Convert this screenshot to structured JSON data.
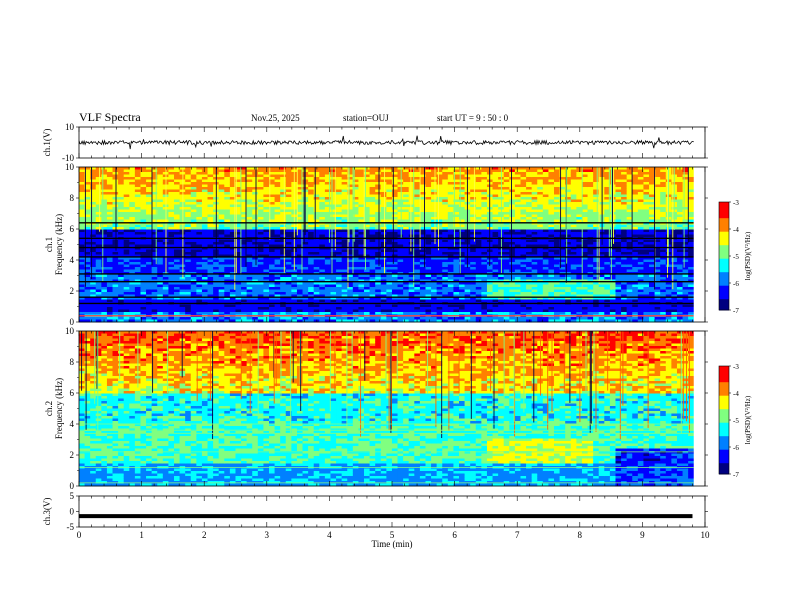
{
  "header": {
    "title": "VLF Spectra",
    "date": "Nov.25, 2025",
    "station": "station=OUJ",
    "start": "start  UT =   9 : 50 : 0"
  },
  "colormap": [
    "#000080",
    "#0000ff",
    "#0080ff",
    "#00ffff",
    "#80ff80",
    "#ffff00",
    "#ff8000",
    "#ff0000",
    "#800000"
  ],
  "chart_data": [
    {
      "type": "line",
      "ylabel": "ch.1(V)",
      "ylim": [
        -10,
        10
      ],
      "yticks": [
        10,
        -10
      ],
      "xlim": [
        0,
        10
      ],
      "baseline": 0,
      "description_series": [
        {
          "x": [
            0,
            9.8
          ],
          "y": [
            0,
            0
          ]
        }
      ]
    },
    {
      "type": "heatmap",
      "ylabel_ch": "ch.1",
      "ylabel": "Frequency (kHz)",
      "ylim": [
        0,
        10
      ],
      "yticks": [
        0,
        2,
        4,
        6,
        8,
        10
      ],
      "xlim": [
        0,
        10
      ],
      "colorbar": {
        "label": "log(PSD)(V²/Hz)",
        "ticks": [
          -3,
          -4,
          -5,
          -6,
          -7
        ],
        "range": [
          -7,
          -3
        ]
      }
    },
    {
      "type": "heatmap",
      "ylabel_ch": "ch.2",
      "ylabel": "Frequency (kHz)",
      "ylim": [
        0,
        10
      ],
      "yticks": [
        0,
        2,
        4,
        6,
        8,
        10
      ],
      "xlim": [
        0,
        10
      ],
      "colorbar": {
        "label": "log(PSD)(V²/Hz)",
        "ticks": [
          -3,
          -4,
          -5,
          -6,
          -7
        ],
        "range": [
          -7,
          -3
        ]
      }
    },
    {
      "type": "line",
      "ylabel": "ch.3(V)",
      "ylim": [
        -5,
        5
      ],
      "yticks": [
        5,
        0,
        -5
      ],
      "xlim": [
        0,
        10
      ],
      "series": [
        {
          "x": [
            0,
            9.8
          ],
          "y": [
            -1.5,
            -1.5
          ]
        }
      ]
    }
  ],
  "xaxis": {
    "label": "Time (min)",
    "ticks": [
      0,
      1,
      2,
      3,
      4,
      5,
      6,
      7,
      8,
      9,
      10
    ]
  }
}
